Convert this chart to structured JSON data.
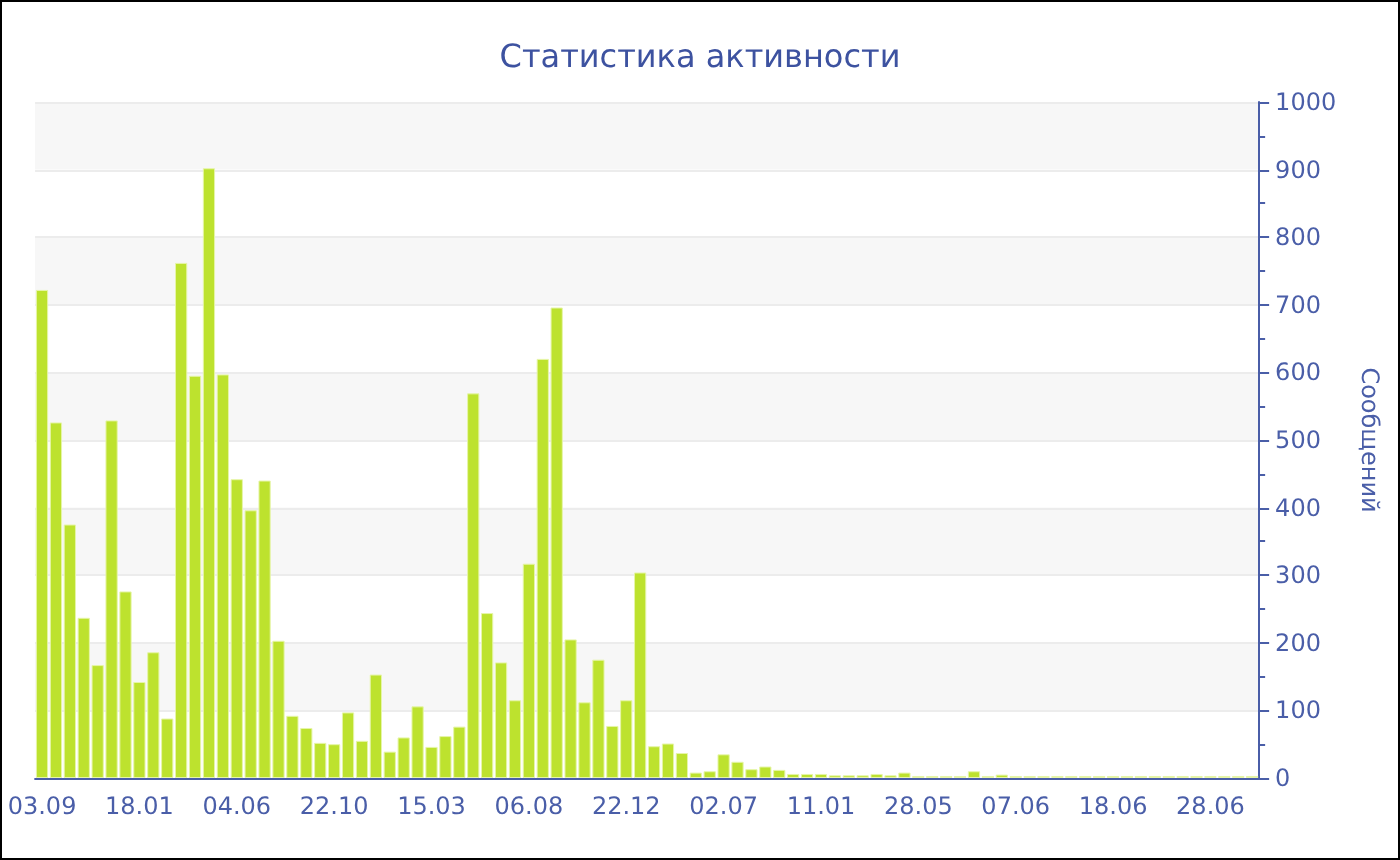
{
  "chart_data": {
    "type": "bar",
    "title": "Статистика активности",
    "ylabel": "Сообщений",
    "categories": [
      "03.09",
      null,
      null,
      null,
      null,
      null,
      null,
      "18.01",
      null,
      null,
      null,
      null,
      null,
      null,
      "04.06",
      null,
      null,
      null,
      null,
      null,
      null,
      "22.10",
      null,
      null,
      null,
      null,
      null,
      null,
      "15.03",
      null,
      null,
      null,
      null,
      null,
      null,
      "06.08",
      null,
      null,
      null,
      null,
      null,
      null,
      "22.12",
      null,
      null,
      null,
      null,
      null,
      null,
      "02.07",
      null,
      null,
      null,
      null,
      null,
      null,
      "11.01",
      null,
      null,
      null,
      null,
      null,
      null,
      "28.05",
      null,
      null,
      null,
      null,
      null,
      null,
      "07.06",
      null,
      null,
      null,
      null,
      null,
      null,
      "18.06",
      null,
      null,
      null,
      null,
      null,
      null,
      "28.06",
      null,
      null,
      null
    ],
    "values": [
      722,
      526,
      375,
      237,
      167,
      529,
      276,
      142,
      186,
      88,
      762,
      595,
      902,
      597,
      442,
      396,
      440,
      203,
      92,
      74,
      52,
      50,
      97,
      55,
      153,
      39,
      60,
      106,
      46,
      62,
      76,
      569,
      244,
      171,
      115,
      317,
      620,
      696,
      205,
      112,
      175,
      77,
      115,
      304,
      47,
      51,
      37,
      8,
      10,
      35,
      24,
      13,
      17,
      12,
      6,
      6,
      6,
      4,
      4,
      4,
      6,
      4,
      8,
      3,
      3,
      3,
      3,
      10,
      3,
      5,
      3,
      3,
      3,
      3,
      3,
      3,
      3,
      3,
      3,
      3,
      3,
      3,
      3,
      3,
      3,
      3,
      3,
      3
    ],
    "color": "#bde22e",
    "ylim": [
      0,
      1000
    ],
    "yticks": [
      0,
      100,
      200,
      300,
      400,
      500,
      600,
      700,
      800,
      900,
      1000
    ],
    "grid": "y"
  }
}
